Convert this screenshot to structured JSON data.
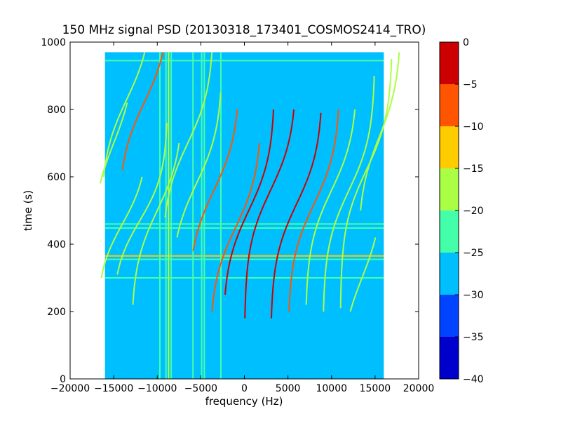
{
  "chart_data": {
    "type": "heatmap",
    "title": "150 MHz signal PSD (20130318_173401_COSMOS2414_TRO)",
    "xlabel": "frequency (Hz)",
    "ylabel": "time (s)",
    "xlim": [
      -20000,
      20000
    ],
    "ylim": [
      0,
      1000
    ],
    "x_extent": [
      -16000,
      16000
    ],
    "y_extent": [
      0,
      970
    ],
    "x_ticks": [
      -20000,
      -15000,
      -10000,
      -5000,
      0,
      5000,
      10000,
      15000,
      20000
    ],
    "x_tick_labels": [
      "−20000",
      "−15000",
      "−10000",
      "−5000",
      "0",
      "5000",
      "10000",
      "15000",
      "20000"
    ],
    "y_ticks": [
      0,
      200,
      400,
      600,
      800,
      1000
    ],
    "y_tick_labels": [
      "0",
      "200",
      "400",
      "600",
      "800",
      "1000"
    ],
    "background_level": -27.5,
    "colorbar": {
      "levels": [
        -40,
        -35,
        -30,
        -25,
        -20,
        -15,
        -10,
        -5,
        0
      ],
      "tick_labels": [
        "−40",
        "−35",
        "−30",
        "−25",
        "−20",
        "−15",
        "−10",
        "−5",
        "0"
      ],
      "colors": [
        "#0000cc",
        "#0044ff",
        "#00bfff",
        "#44ffaa",
        "#aaff44",
        "#ffcc00",
        "#ff5500",
        "#cc0000"
      ]
    },
    "horizontal_bands": [
      {
        "time": 945,
        "level": -22
      },
      {
        "time": 460,
        "level": -22
      },
      {
        "time": 448,
        "level": -22
      },
      {
        "time": 365,
        "level": -15
      },
      {
        "time": 355,
        "level": -22
      },
      {
        "time": 300,
        "level": -25
      }
    ],
    "vertical_bands": [
      {
        "frequency": -9700,
        "level": -22
      },
      {
        "frequency": -9000,
        "level": -22
      },
      {
        "frequency": -8700,
        "level": -18
      },
      {
        "frequency": -8400,
        "level": -22
      },
      {
        "frequency": -5900,
        "level": -22
      },
      {
        "frequency": -4900,
        "level": -22
      },
      {
        "frequency": -4600,
        "level": -22
      },
      {
        "frequency": -2700,
        "level": -22
      }
    ],
    "tracks": [
      {
        "center_frequency": -13500,
        "center_time": 830,
        "half_width": 3000,
        "slope": -0.06,
        "t_range": [
          600,
          970
        ],
        "level": -20
      },
      {
        "center_frequency": -11500,
        "center_time": 820,
        "half_width": 3000,
        "slope": -0.06,
        "t_range": [
          620,
          970
        ],
        "level": -10
      },
      {
        "center_frequency": -14000,
        "center_time": 460,
        "half_width": 3000,
        "slope": -0.07,
        "t_range": [
          300,
          600
        ],
        "level": -20
      },
      {
        "center_frequency": -12000,
        "center_time": 470,
        "half_width": 3200,
        "slope": -0.07,
        "t_range": [
          310,
          760
        ],
        "level": -20
      },
      {
        "center_frequency": -10000,
        "center_time": 500,
        "half_width": 3000,
        "slope": -0.06,
        "t_range": [
          220,
          700
        ],
        "level": -20
      },
      {
        "center_frequency": -6500,
        "center_time": 700,
        "half_width": 3000,
        "slope": -0.06,
        "t_range": [
          480,
          970
        ],
        "level": -20
      },
      {
        "center_frequency": -5500,
        "center_time": 580,
        "half_width": 3000,
        "slope": -0.06,
        "t_range": [
          420,
          850
        ],
        "level": -20
      },
      {
        "center_frequency": -3500,
        "center_time": 560,
        "half_width": 3000,
        "slope": -0.06,
        "t_range": [
          380,
          800
        ],
        "level": -10
      },
      {
        "center_frequency": -1000,
        "center_time": 450,
        "half_width": 3000,
        "slope": -0.06,
        "t_range": [
          200,
          700
        ],
        "level": -10
      },
      {
        "center_frequency": 500,
        "center_time": 500,
        "half_width": 3000,
        "slope": -0.06,
        "t_range": [
          250,
          800
        ],
        "level": -5
      },
      {
        "center_frequency": 3000,
        "center_time": 560,
        "half_width": 3000,
        "slope": -0.06,
        "t_range": [
          180,
          800
        ],
        "level": -5
      },
      {
        "center_frequency": 6000,
        "center_time": 520,
        "half_width": 3000,
        "slope": -0.06,
        "t_range": [
          180,
          790
        ],
        "level": -5
      },
      {
        "center_frequency": 8000,
        "center_time": 520,
        "half_width": 3000,
        "slope": -0.06,
        "t_range": [
          200,
          800
        ],
        "level": -10
      },
      {
        "center_frequency": 10000,
        "center_time": 560,
        "half_width": 3000,
        "slope": -0.06,
        "t_range": [
          220,
          800
        ],
        "level": -20
      },
      {
        "center_frequency": 12000,
        "center_time": 560,
        "half_width": 3000,
        "slope": -0.06,
        "t_range": [
          200,
          900
        ],
        "level": -20
      },
      {
        "center_frequency": 14000,
        "center_time": 620,
        "half_width": 3000,
        "slope": -0.06,
        "t_range": [
          210,
          950
        ],
        "level": -20
      },
      {
        "center_frequency": 15500,
        "center_time": 720,
        "half_width": 2500,
        "slope": -0.06,
        "t_range": [
          500,
          970
        ],
        "level": -20
      },
      {
        "center_frequency": -15000,
        "center_time": 700,
        "half_width": 2500,
        "slope": -0.06,
        "t_range": [
          580,
          820
        ],
        "level": -20
      },
      {
        "center_frequency": 13500,
        "center_time": 300,
        "half_width": 2500,
        "slope": -0.06,
        "t_range": [
          200,
          420
        ],
        "level": -20
      }
    ]
  }
}
